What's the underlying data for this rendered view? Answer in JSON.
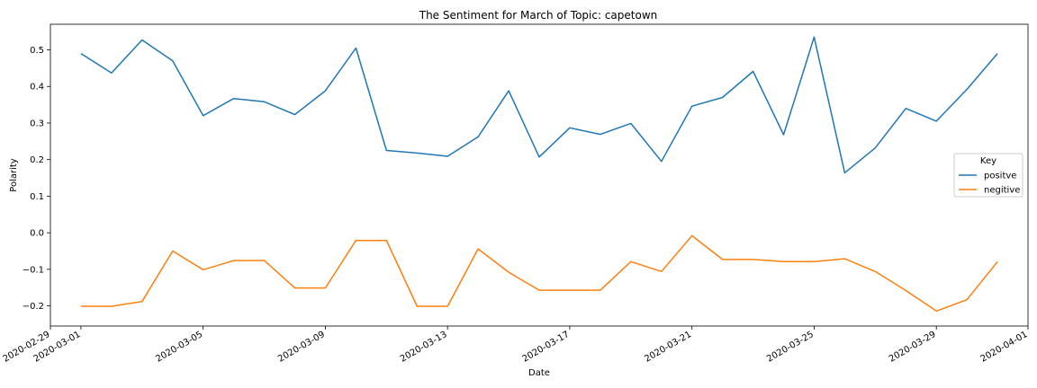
{
  "chart_data": {
    "type": "line",
    "title": "The Sentiment for March of Topic: capetown",
    "xlabel": "Date",
    "ylabel": "Polarity",
    "x": [
      "2020-03-01",
      "2020-03-02",
      "2020-03-03",
      "2020-03-04",
      "2020-03-05",
      "2020-03-06",
      "2020-03-07",
      "2020-03-08",
      "2020-03-09",
      "2020-03-10",
      "2020-03-11",
      "2020-03-12",
      "2020-03-13",
      "2020-03-14",
      "2020-03-15",
      "2020-03-16",
      "2020-03-17",
      "2020-03-18",
      "2020-03-19",
      "2020-03-20",
      "2020-03-21",
      "2020-03-22",
      "2020-03-23",
      "2020-03-24",
      "2020-03-25",
      "2020-03-26",
      "2020-03-27",
      "2020-03-28",
      "2020-03-29",
      "2020-03-30",
      "2020-03-31"
    ],
    "series": [
      {
        "name": "positve",
        "color": "#1f77b4",
        "values": [
          0.49,
          0.437,
          0.527,
          0.47,
          0.32,
          0.367,
          0.358,
          0.323,
          0.388,
          0.505,
          0.225,
          0.218,
          0.209,
          0.262,
          0.388,
          0.207,
          0.287,
          0.269,
          0.299,
          0.195,
          0.346,
          0.37,
          0.441,
          0.268,
          0.535,
          0.164,
          0.232,
          0.34,
          0.305,
          0.392,
          0.49
        ]
      },
      {
        "name": "negitive",
        "color": "#ff7f0e",
        "values": [
          -0.201,
          -0.201,
          -0.188,
          -0.05,
          -0.101,
          -0.076,
          -0.076,
          -0.151,
          -0.151,
          -0.021,
          -0.021,
          -0.201,
          -0.201,
          -0.044,
          -0.108,
          -0.157,
          -0.157,
          -0.157,
          -0.079,
          -0.106,
          -0.008,
          -0.073,
          -0.073,
          -0.079,
          -0.079,
          -0.071,
          -0.106,
          -0.158,
          -0.214,
          -0.183,
          -0.079
        ]
      }
    ],
    "xlim": [
      "2020-02-29",
      "2020-04-01"
    ],
    "ylim": [
      -0.255,
      0.57
    ],
    "x_ticks": [
      "2020-02-29",
      "2020-03-01",
      "2020-03-05",
      "2020-03-09",
      "2020-03-13",
      "2020-03-17",
      "2020-03-21",
      "2020-03-25",
      "2020-03-29",
      "2020-04-01"
    ],
    "y_ticks": [
      -0.2,
      -0.1,
      0.0,
      0.1,
      0.2,
      0.3,
      0.4,
      0.5
    ],
    "y_tick_labels": [
      "−0.2",
      "−0.1",
      "0.0",
      "0.1",
      "0.2",
      "0.3",
      "0.4",
      "0.5"
    ],
    "grid": false,
    "legend": {
      "title": "Key",
      "placement": "center-right"
    }
  }
}
